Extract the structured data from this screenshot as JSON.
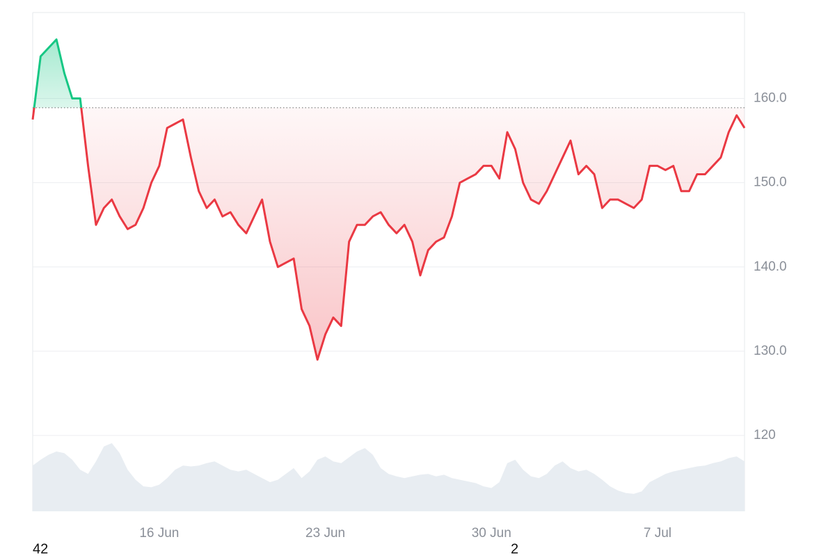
{
  "chart_data": {
    "type": "baseline-line",
    "categories": [
      null,
      null,
      null,
      null,
      null,
      null,
      null,
      null,
      null,
      null,
      null,
      null,
      null,
      null,
      null,
      null,
      "16 Jun",
      null,
      null,
      null,
      null,
      null,
      null,
      null,
      null,
      null,
      null,
      null,
      null,
      null,
      null,
      null,
      null,
      null,
      null,
      null,
      null,
      "23 Jun",
      null,
      null,
      null,
      null,
      null,
      null,
      null,
      null,
      null,
      null,
      null,
      null,
      null,
      null,
      null,
      null,
      null,
      null,
      null,
      null,
      "30 Jun",
      null,
      null,
      null,
      null,
      null,
      null,
      null,
      null,
      null,
      null,
      null,
      null,
      null,
      null,
      null,
      null,
      null,
      null,
      null,
      null,
      "7 Jul",
      null,
      null,
      null,
      null,
      null,
      null,
      null,
      null,
      null,
      null,
      null
    ],
    "series": [
      {
        "values": [
          157.5,
          165,
          166,
          167,
          163,
          160,
          160,
          152,
          145,
          147,
          148,
          146,
          144.5,
          145,
          147,
          150,
          152,
          156.5,
          157,
          157.5,
          153,
          149,
          147,
          148,
          146,
          146.5,
          145,
          144,
          146,
          148,
          143,
          140,
          140.5,
          141,
          135,
          133,
          129,
          132,
          134,
          133,
          143,
          145,
          145,
          146,
          146.5,
          145,
          144,
          145,
          143,
          139,
          142,
          143,
          143.5,
          146,
          150,
          150.5,
          151,
          152,
          152,
          150.5,
          156,
          154,
          150,
          148,
          147.5,
          149,
          151,
          153,
          155,
          151,
          152,
          151,
          147,
          148,
          148,
          147.5,
          147,
          148,
          152,
          152,
          151.5,
          152,
          149,
          149,
          151,
          151,
          152,
          153,
          156,
          158,
          156.5
        ],
        "color_above": "#16c784",
        "color_below": "#ea3943"
      },
      {
        "axis": "y2",
        "color": "#e8edf2",
        "values": [
          55,
          62,
          68,
          72,
          70,
          62,
          50,
          45,
          60,
          78,
          82,
          70,
          50,
          38,
          30,
          29,
          32,
          40,
          50,
          55,
          54,
          55,
          58,
          60,
          55,
          50,
          48,
          50,
          45,
          40,
          35,
          38,
          45,
          52,
          40,
          48,
          62,
          66,
          60,
          58,
          65,
          72,
          76,
          68,
          52,
          45,
          42,
          40,
          42,
          44,
          45,
          42,
          44,
          40,
          38,
          36,
          34,
          30,
          28,
          35,
          58,
          62,
          50,
          42,
          40,
          45,
          55,
          60,
          52,
          48,
          50,
          45,
          38,
          30,
          25,
          22,
          21,
          24,
          35,
          40,
          45,
          48,
          50,
          52,
          54,
          55,
          58,
          60,
          64,
          66,
          60
        ]
      }
    ],
    "baseline": 158.9,
    "ylim": [
      111,
      170.2
    ],
    "yticks": [
      {
        "value": 160,
        "label": "160.0"
      },
      {
        "value": 150,
        "label": "150.0"
      },
      {
        "value": 140,
        "label": "140.0"
      },
      {
        "value": 130,
        "label": "130.0"
      },
      120
    ],
    "y2lim": [
      0,
      600
    ],
    "grid": true
  },
  "footer_labels": [
    "42",
    "2"
  ]
}
